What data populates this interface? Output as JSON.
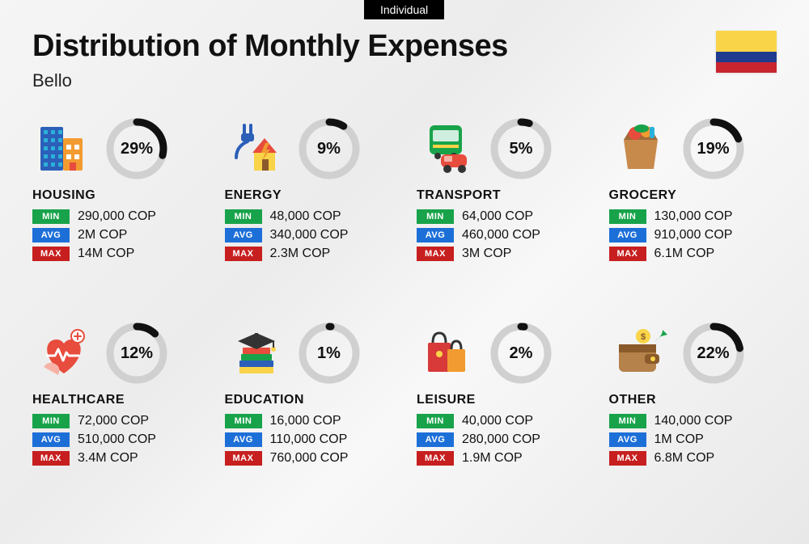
{
  "tag": "Individual",
  "title": "Distribution of Monthly Expenses",
  "subtitle": "Bello",
  "flag_colors": [
    "#f9d448",
    "#1f3b8f",
    "#c8252e"
  ],
  "ring": {
    "track_color": "#d0d0d0",
    "progress_color": "#111111",
    "stroke_width": 9,
    "radius": 33
  },
  "badges": {
    "min": {
      "label": "MIN",
      "color": "#18a34a"
    },
    "avg": {
      "label": "AVG",
      "color": "#1d6fd8"
    },
    "max": {
      "label": "MAX",
      "color": "#c71f1f"
    }
  },
  "categories": [
    {
      "key": "housing",
      "name": "HOUSING",
      "percent": 29,
      "min": "290,000 COP",
      "avg": "2M COP",
      "max": "14M COP",
      "icon": "housing"
    },
    {
      "key": "energy",
      "name": "ENERGY",
      "percent": 9,
      "min": "48,000 COP",
      "avg": "340,000 COP",
      "max": "2.3M COP",
      "icon": "energy"
    },
    {
      "key": "transport",
      "name": "TRANSPORT",
      "percent": 5,
      "min": "64,000 COP",
      "avg": "460,000 COP",
      "max": "3M COP",
      "icon": "transport"
    },
    {
      "key": "grocery",
      "name": "GROCERY",
      "percent": 19,
      "min": "130,000 COP",
      "avg": "910,000 COP",
      "max": "6.1M COP",
      "icon": "grocery"
    },
    {
      "key": "healthcare",
      "name": "HEALTHCARE",
      "percent": 12,
      "min": "72,000 COP",
      "avg": "510,000 COP",
      "max": "3.4M COP",
      "icon": "healthcare"
    },
    {
      "key": "education",
      "name": "EDUCATION",
      "percent": 1,
      "min": "16,000 COP",
      "avg": "110,000 COP",
      "max": "760,000 COP",
      "icon": "education"
    },
    {
      "key": "leisure",
      "name": "LEISURE",
      "percent": 2,
      "min": "40,000 COP",
      "avg": "280,000 COP",
      "max": "1.9M COP",
      "icon": "leisure"
    },
    {
      "key": "other",
      "name": "OTHER",
      "percent": 22,
      "min": "140,000 COP",
      "avg": "1M COP",
      "max": "6.8M COP",
      "icon": "other"
    }
  ],
  "icons": {
    "housing": {
      "colors": [
        "#2b5fb8",
        "#f29b30",
        "#2bb0d9",
        "#e74c3c"
      ]
    },
    "energy": {
      "colors": [
        "#f9d448",
        "#e74c3c",
        "#2b5fb8",
        "#f29b30"
      ]
    },
    "transport": {
      "colors": [
        "#18a34a",
        "#e74c3c",
        "#333333",
        "#f9d448"
      ]
    },
    "grocery": {
      "colors": [
        "#c88a4b",
        "#e74c3c",
        "#18a34a",
        "#f29b30",
        "#2bb0d9"
      ]
    },
    "healthcare": {
      "colors": [
        "#e74c3c",
        "#f7b2a8",
        "#ffffff",
        "#18a34a"
      ]
    },
    "education": {
      "colors": [
        "#333333",
        "#e74c3c",
        "#18a34a",
        "#2b5fb8",
        "#f9d448"
      ]
    },
    "leisure": {
      "colors": [
        "#d83a3a",
        "#f29b30",
        "#333333",
        "#f9d448"
      ]
    },
    "other": {
      "colors": [
        "#b5824b",
        "#8a5a2b",
        "#f9d448",
        "#18a34a"
      ]
    }
  }
}
